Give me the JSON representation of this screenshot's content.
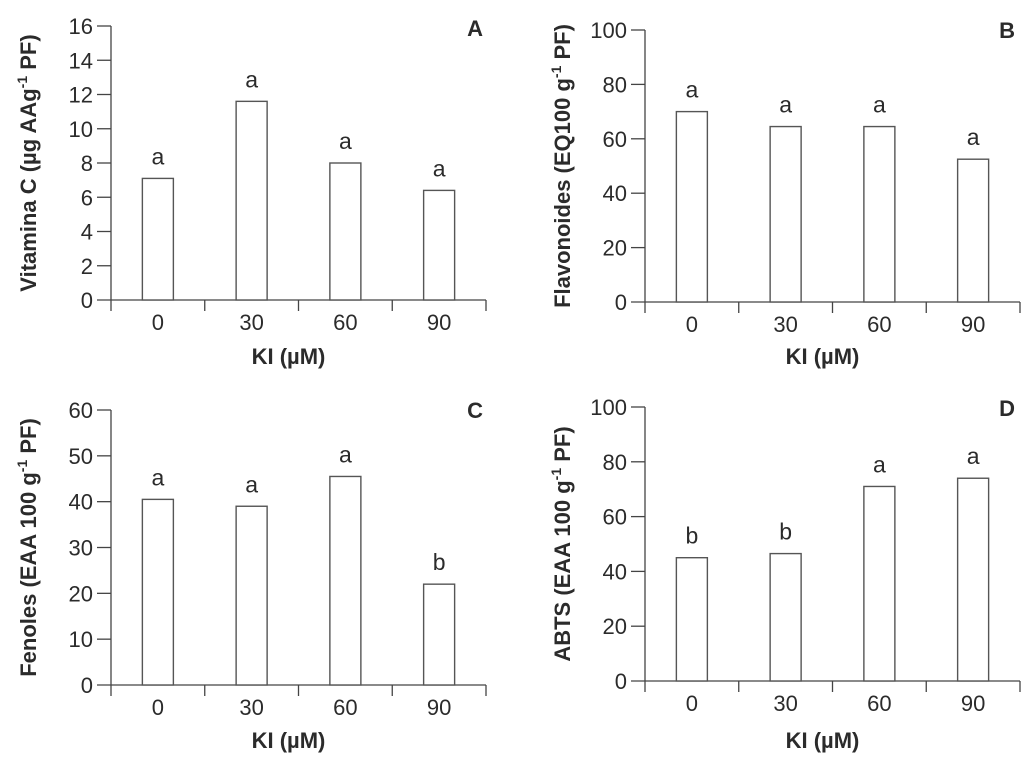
{
  "chart_data": [
    {
      "type": "bar",
      "panel_label": "A",
      "title": "",
      "xlabel": "KI (µM)",
      "ylabel_main": "Vitamina C (µg AAg",
      "ylabel_sup": "-1",
      "ylabel_end": " PF)",
      "categories": [
        "0",
        "30",
        "60",
        "90"
      ],
      "values": [
        7.1,
        11.6,
        8.0,
        6.4
      ],
      "significance": [
        "a",
        "a",
        "a",
        "a"
      ],
      "ylim": [
        0,
        16
      ],
      "yticks": [
        0,
        2,
        4,
        6,
        8,
        10,
        12,
        14,
        16
      ],
      "grid": false
    },
    {
      "type": "bar",
      "panel_label": "B",
      "title": "",
      "xlabel": "KI (µM)",
      "ylabel_main": "Flavonoides (EQ100 g",
      "ylabel_sup": "-1",
      "ylabel_end": " PF)",
      "categories": [
        "0",
        "30",
        "60",
        "90"
      ],
      "values": [
        70,
        64.5,
        64.5,
        52.5
      ],
      "significance": [
        "a",
        "a",
        "a",
        "a"
      ],
      "ylim": [
        0,
        100
      ],
      "yticks": [
        0,
        20,
        40,
        60,
        80,
        100
      ],
      "grid": false
    },
    {
      "type": "bar",
      "panel_label": "C",
      "title": "",
      "xlabel": "KI (µM)",
      "ylabel_main": "Fenoles (EAA 100 g",
      "ylabel_sup": "-1",
      "ylabel_end": " PF)",
      "categories": [
        "0",
        "30",
        "60",
        "90"
      ],
      "values": [
        40.5,
        39,
        45.5,
        22
      ],
      "significance": [
        "a",
        "a",
        "a",
        "b"
      ],
      "ylim": [
        0,
        60
      ],
      "yticks": [
        0,
        10,
        20,
        30,
        40,
        50,
        60
      ],
      "grid": false
    },
    {
      "type": "bar",
      "panel_label": "D",
      "title": "",
      "xlabel": "KI (µM)",
      "ylabel_main": "ABTS (EAA 100 g",
      "ylabel_sup": "-1",
      "ylabel_end": " PF)",
      "categories": [
        "0",
        "30",
        "60",
        "90"
      ],
      "values": [
        45,
        46.5,
        71,
        74
      ],
      "significance": [
        "b",
        "b",
        "a",
        "a"
      ],
      "ylim": [
        0,
        100
      ],
      "yticks": [
        0,
        20,
        40,
        60,
        80,
        100
      ],
      "grid": false
    }
  ]
}
